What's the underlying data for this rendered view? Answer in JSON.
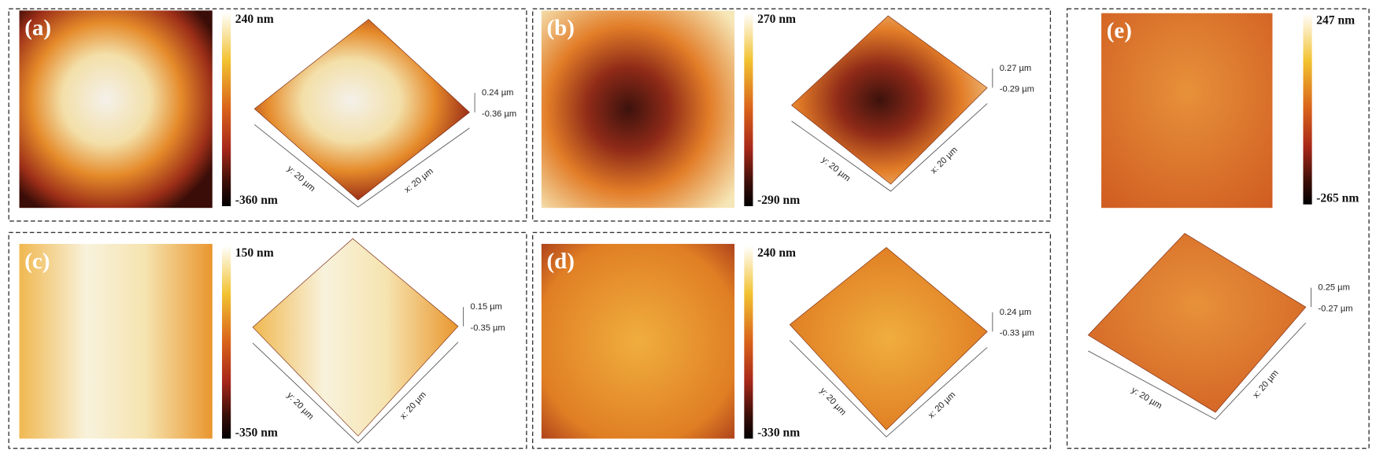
{
  "panels": [
    {
      "label": "(a)",
      "colorbar_max": "240 nm",
      "colorbar_min": "-360 nm",
      "z_max": "0.24 µm",
      "z_min": "-0.36 µm",
      "y_axis": "y: 20 µm",
      "x_axis": "x: 20 µm"
    },
    {
      "label": "(b)",
      "colorbar_max": "270 nm",
      "colorbar_min": "-290 nm",
      "z_max": "0.27 µm",
      "z_min": "-0.29 µm",
      "y_axis": "y: 20 µm",
      "x_axis": "x: 20 µm"
    },
    {
      "label": "(c)",
      "colorbar_max": "150 nm",
      "colorbar_min": "-350 nm",
      "z_max": "0.15 µm",
      "z_min": "-0.35 µm",
      "y_axis": "y: 20 µm",
      "x_axis": "x: 20 µm"
    },
    {
      "label": "(d)",
      "colorbar_max": "240 nm",
      "colorbar_min": "-330 nm",
      "z_max": "0.24 µm",
      "z_min": "-0.33 µm",
      "y_axis": "y: 20 µm",
      "x_axis": "x: 20 µm"
    },
    {
      "label": "(e)",
      "colorbar_max": "247 nm",
      "colorbar_min": "-265 nm",
      "z_max": "0.25 µm",
      "z_min": "-0.27 µm",
      "y_axis": "y: 20 µm",
      "x_axis": "x: 20 µm"
    }
  ]
}
